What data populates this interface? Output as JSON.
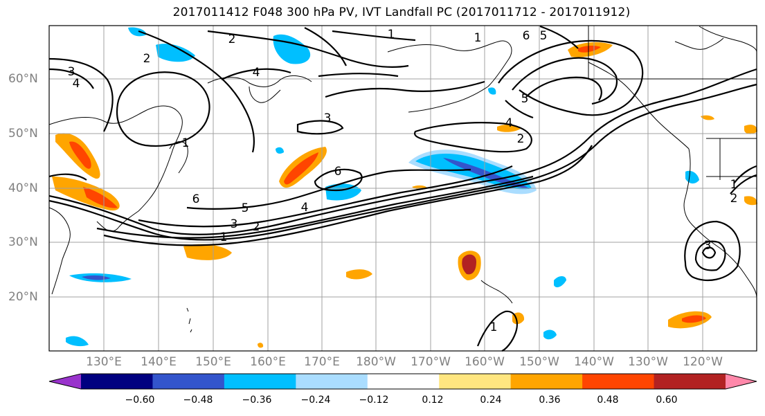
{
  "title": "2017011412 F048 300 hPa PV, IVT Landfall PC (2017011712 - 2017011912)",
  "lon_labels": [
    "130°E",
    "140°E",
    "150°E",
    "160°E",
    "170°E",
    "180°W",
    "170°W",
    "160°W",
    "150°W",
    "140°W",
    "130°W",
    "120°W"
  ],
  "lat_labels": [
    "60°N",
    "50°N",
    "40°N",
    "30°N",
    "20°N"
  ],
  "colorbar": {
    "ticks": [
      "−0.60",
      "−0.48",
      "−0.36",
      "−0.24",
      "−0.12",
      "0.12",
      "0.24",
      "0.36",
      "0.48",
      "0.60"
    ],
    "colors": [
      "#9933cc",
      "#000080",
      "#3355cc",
      "#00bfff",
      "#aaddff",
      "#ffffff",
      "#ffe680",
      "#ffa500",
      "#ff4500",
      "#b22222",
      "#ff88aa"
    ]
  },
  "contour_labels": [
    "1",
    "2",
    "3",
    "4",
    "5",
    "6"
  ],
  "shading_colors": {
    "light_blue": "#aaddff",
    "cyan": "#00bfff",
    "blue": "#3355cc",
    "yellow": "#ffe680",
    "orange": "#ffa500",
    "red_orange": "#ff4500",
    "dark_red": "#b22222"
  }
}
